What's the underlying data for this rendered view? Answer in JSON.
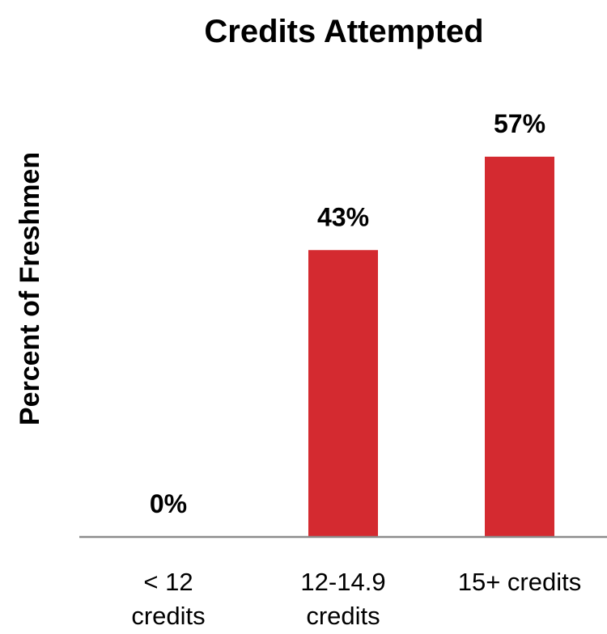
{
  "chart_data": {
    "type": "bar",
    "title": "Credits Attempted",
    "xlabel": "",
    "ylabel": "Percent of Freshmen",
    "categories": [
      [
        "< 12",
        "credits"
      ],
      [
        "12-14.9",
        "credits"
      ],
      [
        "15+ credits"
      ]
    ],
    "values": [
      0,
      43,
      57
    ],
    "data_labels": [
      "0%",
      "43%",
      "57%"
    ],
    "ylim": [
      0,
      70
    ],
    "grid": false,
    "legend": "none",
    "bar_color": "#D42A30",
    "axis_color": "#8C8C8C"
  }
}
